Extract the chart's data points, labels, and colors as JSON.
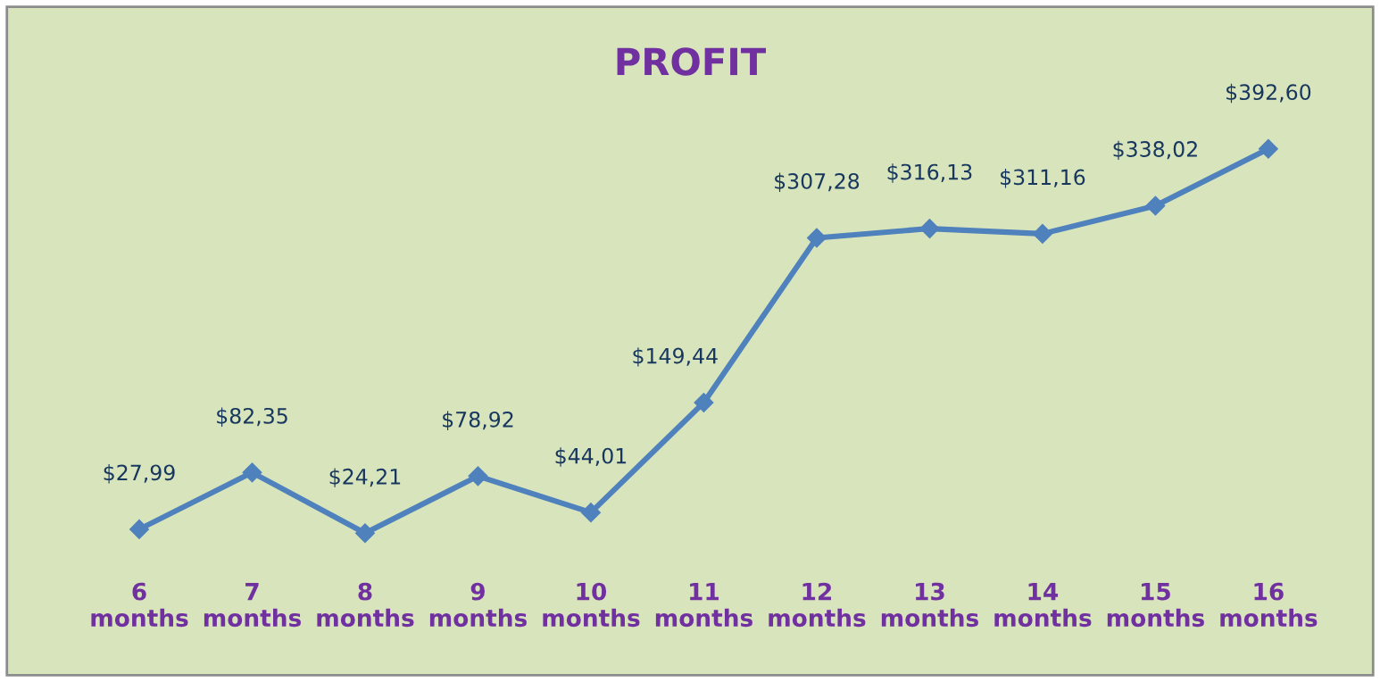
{
  "chart_data": {
    "type": "line",
    "title": "PROFIT",
    "categories": [
      "6 months",
      "7 months",
      "8 months",
      "9 months",
      "10 months",
      "11 months",
      "12 months",
      "13 months",
      "14 months",
      "15 months",
      "16 months"
    ],
    "series": [
      {
        "color": "#4f81bd",
        "values": [
          27.99,
          82.35,
          24.21,
          78.92,
          44.01,
          149.44,
          307.28,
          316.13,
          311.16,
          338.02,
          392.6
        ],
        "value_labels": [
          "$27,99",
          "$82,35",
          "$24,21",
          "$78,92",
          "$44,01",
          "$149,44",
          "$307,28",
          "$316,13",
          "$311,16",
          "$338,02",
          "$392,60"
        ]
      }
    ],
    "marker": "diamond",
    "line_style": "solid",
    "grid": false,
    "legend": false
  }
}
